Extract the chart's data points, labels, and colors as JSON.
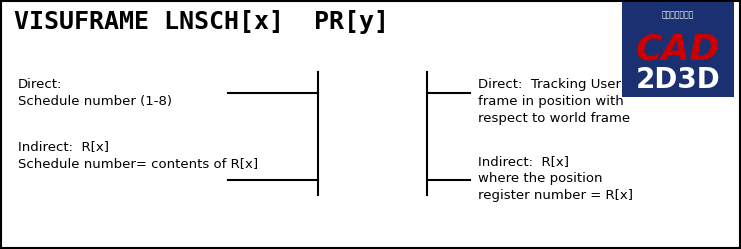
{
  "title": "VISUFRAME LNSCH[x]  PR[y]",
  "bg_color": "#ffffff",
  "border_color": "#000000",
  "logo_bg": "#1a3070",
  "logo_red": "#cc0000",
  "logo_text_top": "工业自动化专家",
  "logo_line1": "CAD",
  "logo_line2": "2D3D",
  "left_text1": "Direct:",
  "left_text2": "Schedule number (1-8)",
  "left_text3": "Indirect:  R[x]",
  "left_text4": "Schedule number= contents of R[x]",
  "right_text1": "Direct:  Tracking User",
  "right_text2": "frame in position with",
  "right_text3": "respect to world frame",
  "right_text4": "Indirect:  R[x]",
  "right_text5": "where the position",
  "right_text6": "register number = R[x]",
  "figw": 7.41,
  "figh": 2.49,
  "dpi": 100
}
